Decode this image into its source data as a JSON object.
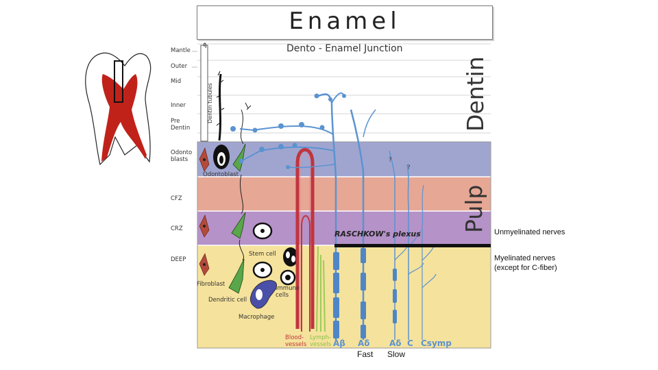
{
  "title": "Enamel",
  "junction": "Dento - Enamel Junction",
  "regions": {
    "dentin": "Dentin",
    "pulp": "Pulp"
  },
  "layers": [
    "Mantle",
    "Outer",
    "Mid",
    "Inner",
    "Pre Dentin",
    "Odonto blasts",
    "CFZ",
    "CRZ",
    "DEEP"
  ],
  "labels": {
    "dentin_tubules": "Dentin tubules",
    "odontoblast": "Odontoblast",
    "stem_cell": "Stem cell",
    "fibroblast": "Fibroblast",
    "dendritic_cell": "Dendritic cell",
    "immune_cells": "Immune cells",
    "macrophage": "Macrophage",
    "blood_vessels": "Blood-vessels",
    "lymph_vessels": "Lymph-vessels",
    "plexus": "RASCHKOW's plexus",
    "question_mark": "?"
  },
  "fiber_types": [
    "Aβ",
    "Aδ",
    "Aδ",
    "C",
    "Csymp"
  ],
  "captions": {
    "unmyelinated": "Unmyelinated nerves",
    "myelinated_line1": "Myelinated nerves",
    "myelinated_line2": "(except for C-fiber)",
    "fast": "Fast",
    "slow": "Slow"
  },
  "colors": {
    "odontoblast_band": "#a0a5d0",
    "cfz_band": "#e6a795",
    "crz_band": "#b592c8",
    "deep_band": "#f5e29c",
    "nerve": "#5b93d0",
    "blood": "#c0353e",
    "lymph": "#9ccc5a",
    "pulp_tooth": "#c0221a"
  }
}
